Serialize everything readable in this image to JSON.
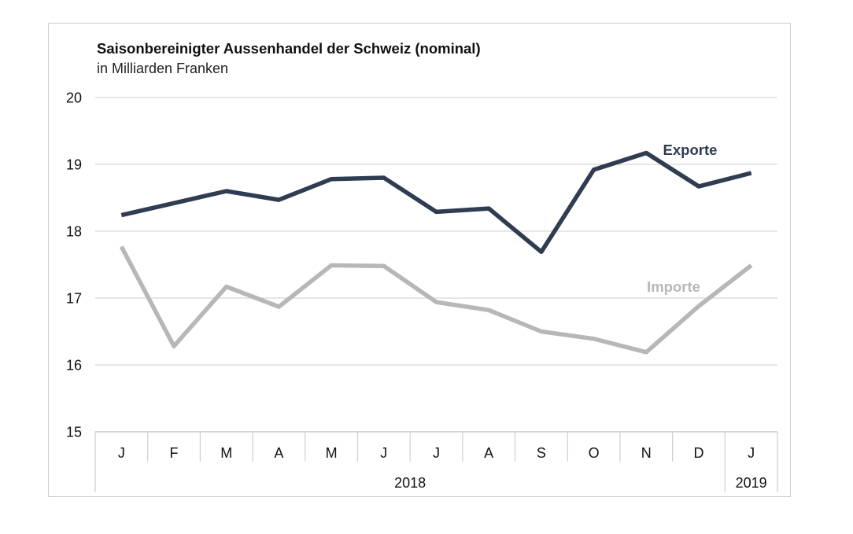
{
  "chart_data": {
    "type": "line",
    "title": "Saisonbereinigter Aussenhandel der Schweiz (nominal)",
    "subtitle": "in Milliarden Franken",
    "categories": [
      "J",
      "F",
      "M",
      "A",
      "M",
      "J",
      "J",
      "A",
      "S",
      "O",
      "N",
      "D",
      "J"
    ],
    "year_groups": [
      {
        "label": "2018",
        "span": 12
      },
      {
        "label": "2019",
        "span": 1
      }
    ],
    "ylim": [
      15,
      20
    ],
    "yticks": [
      15,
      16,
      17,
      18,
      19,
      20
    ],
    "grid": true,
    "series": [
      {
        "name": "Exporte",
        "color": "#2f3c51",
        "values": [
          18.24,
          18.42,
          18.6,
          18.47,
          18.78,
          18.8,
          18.29,
          18.34,
          17.69,
          18.92,
          19.17,
          18.67,
          18.87
        ]
      },
      {
        "name": "Importe",
        "color": "#b7b7b7",
        "values": [
          17.77,
          16.28,
          17.17,
          16.87,
          17.49,
          17.48,
          16.94,
          16.82,
          16.5,
          16.39,
          16.19,
          16.88,
          17.49
        ]
      }
    ]
  }
}
